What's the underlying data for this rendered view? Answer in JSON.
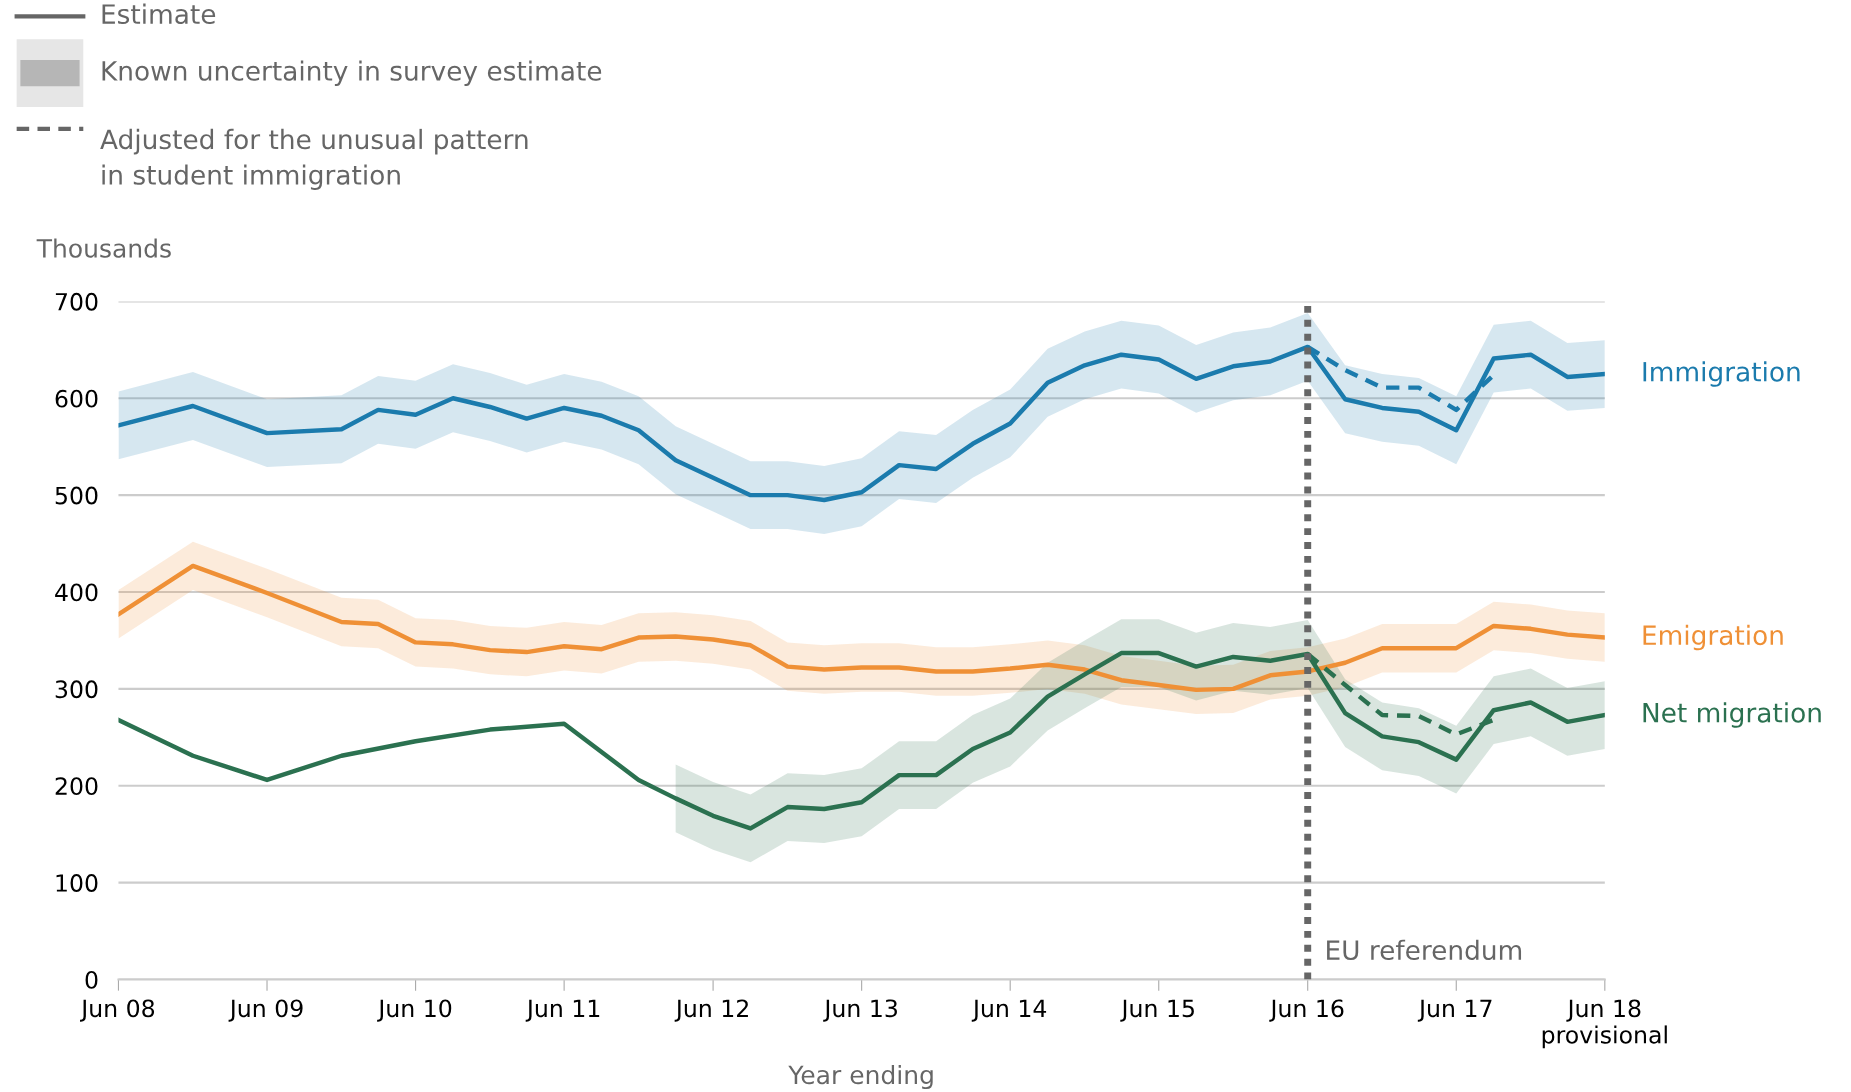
{
  "chart_data": {
    "type": "line",
    "ylabel": "Thousands",
    "xlabel": "Year ending",
    "xlim": [
      "2008-06",
      "2018-06"
    ],
    "xticks": [
      {
        "value": "2008-06",
        "label": "Jun 08"
      },
      {
        "value": "2009-06",
        "label": "Jun 09"
      },
      {
        "value": "2010-06",
        "label": "Jun 10"
      },
      {
        "value": "2011-06",
        "label": "Jun 11"
      },
      {
        "value": "2012-06",
        "label": "Jun 12"
      },
      {
        "value": "2013-06",
        "label": "Jun 13"
      },
      {
        "value": "2014-06",
        "label": "Jun 14"
      },
      {
        "value": "2015-06",
        "label": "Jun 15"
      },
      {
        "value": "2016-06",
        "label": "Jun 16"
      },
      {
        "value": "2017-06",
        "label": "Jun 17"
      },
      {
        "value": "2018-06",
        "label": "Jun 18\nprovisional"
      }
    ],
    "ylim": [
      0,
      700
    ],
    "yticks": [
      0,
      100,
      200,
      300,
      400,
      500,
      600,
      700
    ],
    "grid": "y",
    "series": [
      {
        "name": "Immigration",
        "color": "#1b7bad",
        "line_style": "solid",
        "x": [
          "2008-06",
          "2008-12",
          "2009-06",
          "2009-12",
          "2010-03",
          "2010-06",
          "2010-09",
          "2010-12",
          "2011-03",
          "2011-06",
          "2011-09",
          "2011-12",
          "2012-03",
          "2012-06",
          "2012-09",
          "2012-12",
          "2013-03",
          "2013-06",
          "2013-09",
          "2013-12",
          "2014-03",
          "2014-06",
          "2014-09",
          "2014-12",
          "2015-03",
          "2015-06",
          "2015-09",
          "2015-12",
          "2016-03",
          "2016-06",
          "2016-09",
          "2016-12",
          "2017-03",
          "2017-06",
          "2017-09",
          "2017-12",
          "2018-03",
          "2018-06"
        ],
        "values": [
          572,
          592,
          564,
          568,
          588,
          583,
          600,
          591,
          579,
          590,
          582,
          567,
          536,
          518,
          500,
          500,
          495,
          503,
          531,
          527,
          553,
          574,
          616,
          634,
          645,
          640,
          620,
          633,
          638,
          653,
          599,
          590,
          586,
          567,
          641,
          645,
          622,
          625
        ],
        "lower": [
          537,
          557,
          529,
          533,
          553,
          548,
          565,
          556,
          544,
          555,
          547,
          532,
          501,
          483,
          465,
          465,
          460,
          468,
          496,
          492,
          518,
          539,
          581,
          599,
          610,
          605,
          585,
          598,
          603,
          618,
          564,
          555,
          551,
          532,
          606,
          610,
          587,
          590
        ],
        "upper": [
          607,
          627,
          599,
          603,
          623,
          618,
          635,
          626,
          614,
          625,
          617,
          602,
          571,
          553,
          535,
          535,
          530,
          538,
          566,
          562,
          588,
          609,
          651,
          669,
          680,
          675,
          655,
          668,
          673,
          688,
          634,
          625,
          621,
          602,
          676,
          680,
          657,
          660
        ]
      },
      {
        "color": "#1b7bad",
        "line_style": "dashed",
        "x": [
          "2016-06",
          "2016-09",
          "2016-12",
          "2017-03",
          "2017-06",
          "2017-09"
        ],
        "values": [
          653,
          629,
          611,
          611,
          588,
          624
        ]
      },
      {
        "name": "Emigration",
        "color": "#ef9036",
        "line_style": "solid",
        "x": [
          "2008-06",
          "2008-12",
          "2009-06",
          "2009-12",
          "2010-03",
          "2010-06",
          "2010-09",
          "2010-12",
          "2011-03",
          "2011-06",
          "2011-09",
          "2011-12",
          "2012-03",
          "2012-06",
          "2012-09",
          "2012-12",
          "2013-03",
          "2013-06",
          "2013-09",
          "2013-12",
          "2014-03",
          "2014-06",
          "2014-09",
          "2014-12",
          "2015-03",
          "2015-06",
          "2015-09",
          "2015-12",
          "2016-03",
          "2016-06",
          "2016-09",
          "2016-12",
          "2017-03",
          "2017-06",
          "2017-09",
          "2017-12",
          "2018-03",
          "2018-06"
        ],
        "values": [
          377,
          427,
          399,
          369,
          367,
          348,
          346,
          340,
          338,
          344,
          341,
          353,
          354,
          351,
          345,
          323,
          320,
          322,
          322,
          318,
          318,
          321,
          325,
          320,
          309,
          304,
          299,
          300,
          314,
          318,
          327,
          342,
          342,
          342,
          365,
          362,
          356,
          353
        ],
        "lower": [
          352,
          402,
          374,
          344,
          342,
          323,
          321,
          315,
          313,
          319,
          316,
          328,
          329,
          326,
          320,
          298,
          295,
          297,
          297,
          293,
          293,
          296,
          300,
          295,
          284,
          279,
          274,
          275,
          289,
          293,
          302,
          317,
          317,
          317,
          340,
          337,
          331,
          328
        ],
        "upper": [
          402,
          452,
          424,
          394,
          392,
          373,
          371,
          365,
          363,
          369,
          366,
          378,
          379,
          376,
          370,
          348,
          345,
          347,
          347,
          343,
          343,
          346,
          350,
          345,
          334,
          329,
          324,
          325,
          339,
          343,
          352,
          367,
          367,
          367,
          390,
          387,
          381,
          378
        ]
      },
      {
        "name": "Net migration",
        "color": "#2b7150",
        "line_style": "solid",
        "x": [
          "2008-06",
          "2008-12",
          "2009-06",
          "2009-12",
          "2010-06",
          "2010-12",
          "2011-06",
          "2011-12",
          "2012-03",
          "2012-06",
          "2012-09",
          "2012-12",
          "2013-03",
          "2013-06",
          "2013-09",
          "2013-12",
          "2014-03",
          "2014-06",
          "2014-09",
          "2014-12",
          "2015-03",
          "2015-06",
          "2015-09",
          "2015-12",
          "2016-03",
          "2016-06",
          "2016-09",
          "2016-12",
          "2017-03",
          "2017-06",
          "2017-09",
          "2017-12",
          "2018-03",
          "2018-06"
        ],
        "values": [
          268,
          231,
          206,
          231,
          246,
          258,
          264,
          206,
          187,
          169,
          156,
          178,
          176,
          183,
          211,
          211,
          238,
          255,
          292,
          315,
          337,
          337,
          323,
          333,
          329,
          336,
          275,
          251,
          245,
          227,
          278,
          286,
          266,
          273
        ],
        "lower": [
          null,
          null,
          null,
          null,
          null,
          null,
          null,
          null,
          152,
          134,
          121,
          143,
          141,
          148,
          176,
          176,
          203,
          220,
          257,
          280,
          302,
          302,
          288,
          298,
          294,
          301,
          240,
          216,
          210,
          192,
          243,
          251,
          231,
          238
        ],
        "upper": [
          null,
          null,
          null,
          null,
          null,
          null,
          null,
          null,
          222,
          204,
          191,
          213,
          211,
          218,
          246,
          246,
          273,
          290,
          327,
          350,
          372,
          372,
          358,
          368,
          364,
          371,
          310,
          286,
          280,
          262,
          313,
          321,
          301,
          308
        ]
      },
      {
        "color": "#2b7150",
        "line_style": "dashed",
        "x": [
          "2016-06",
          "2016-09",
          "2016-12",
          "2017-03",
          "2017-06",
          "2017-09"
        ],
        "values": [
          336,
          304,
          273,
          272,
          253,
          268
        ]
      }
    ],
    "ref_lines": [
      {
        "axis": "x",
        "value": "2016-06",
        "label": "EU referendum",
        "color": "#666666",
        "line_style": "dotted"
      }
    ],
    "annotations": [
      "Estimate",
      "Known uncertainty in survey estimate",
      "Adjusted for the unusual pattern\nin student immigration"
    ]
  }
}
